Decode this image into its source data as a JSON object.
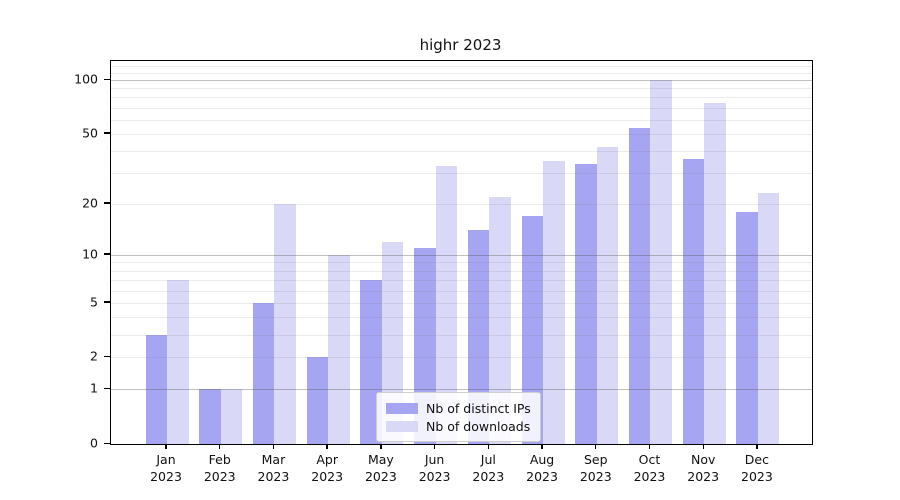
{
  "title": "highr 2023",
  "chart_data": {
    "type": "bar",
    "categories": [
      "Jan 2023",
      "Feb 2023",
      "Mar 2023",
      "Apr 2023",
      "May 2023",
      "Jun 2023",
      "Jul 2023",
      "Aug 2023",
      "Sep 2023",
      "Oct 2023",
      "Nov 2023",
      "Dec 2023"
    ],
    "series": [
      {
        "name": "Nb of distinct IPs",
        "color": "#a5a5f2",
        "values": [
          3,
          1,
          5,
          2,
          7,
          11,
          14,
          17,
          34,
          54,
          36,
          18
        ]
      },
      {
        "name": "Nb of downloads",
        "color": "#d9d9f7",
        "values": [
          7,
          1,
          20,
          10,
          12,
          33,
          22,
          35,
          42,
          100,
          75,
          23
        ]
      }
    ],
    "title": "highr 2023",
    "xlabel": "",
    "ylabel": "",
    "yscale": "log1p",
    "ylim": [
      0,
      127
    ],
    "ytick_labels": [
      "0",
      "1",
      "2",
      "5",
      "10",
      "20",
      "50",
      "100"
    ],
    "yticks": [
      0,
      1,
      2,
      5,
      10,
      20,
      50,
      100
    ],
    "minor_gridlines": [
      2,
      3,
      4,
      5,
      6,
      7,
      8,
      9,
      20,
      30,
      40,
      50,
      60,
      70,
      80,
      90,
      110,
      120
    ],
    "major_gridlines": [
      1,
      10,
      100
    ],
    "grid": "both, drawn above bars",
    "legend_position": "lower center",
    "legend_entries": [
      "Nb of distinct IPs",
      "Nb of downloads"
    ]
  }
}
